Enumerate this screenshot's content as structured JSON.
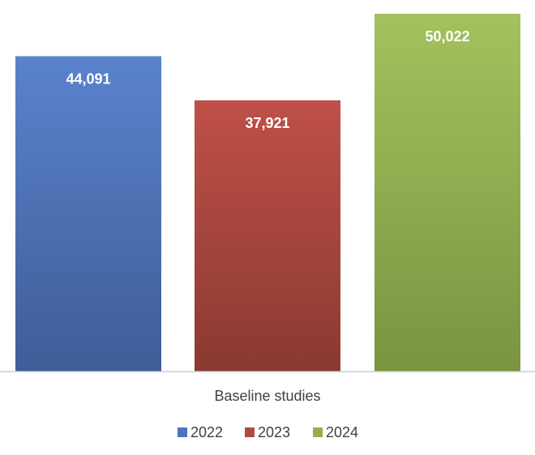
{
  "chart_data": {
    "type": "bar",
    "categories": [
      "Baseline studies"
    ],
    "series": [
      {
        "name": "2022",
        "values": [
          44091
        ],
        "label": "44,091",
        "color": "#4f73be"
      },
      {
        "name": "2023",
        "values": [
          37921
        ],
        "label": "37,921",
        "color": "#b04b42"
      },
      {
        "name": "2024",
        "values": [
          50022
        ],
        "label": "50,022",
        "color": "#93b04e"
      }
    ],
    "title": "",
    "xlabel": "",
    "ylabel": "",
    "ylim": [
      0,
      50022
    ],
    "grid": false,
    "legend": "bottom",
    "data_labels": "inside-top"
  }
}
